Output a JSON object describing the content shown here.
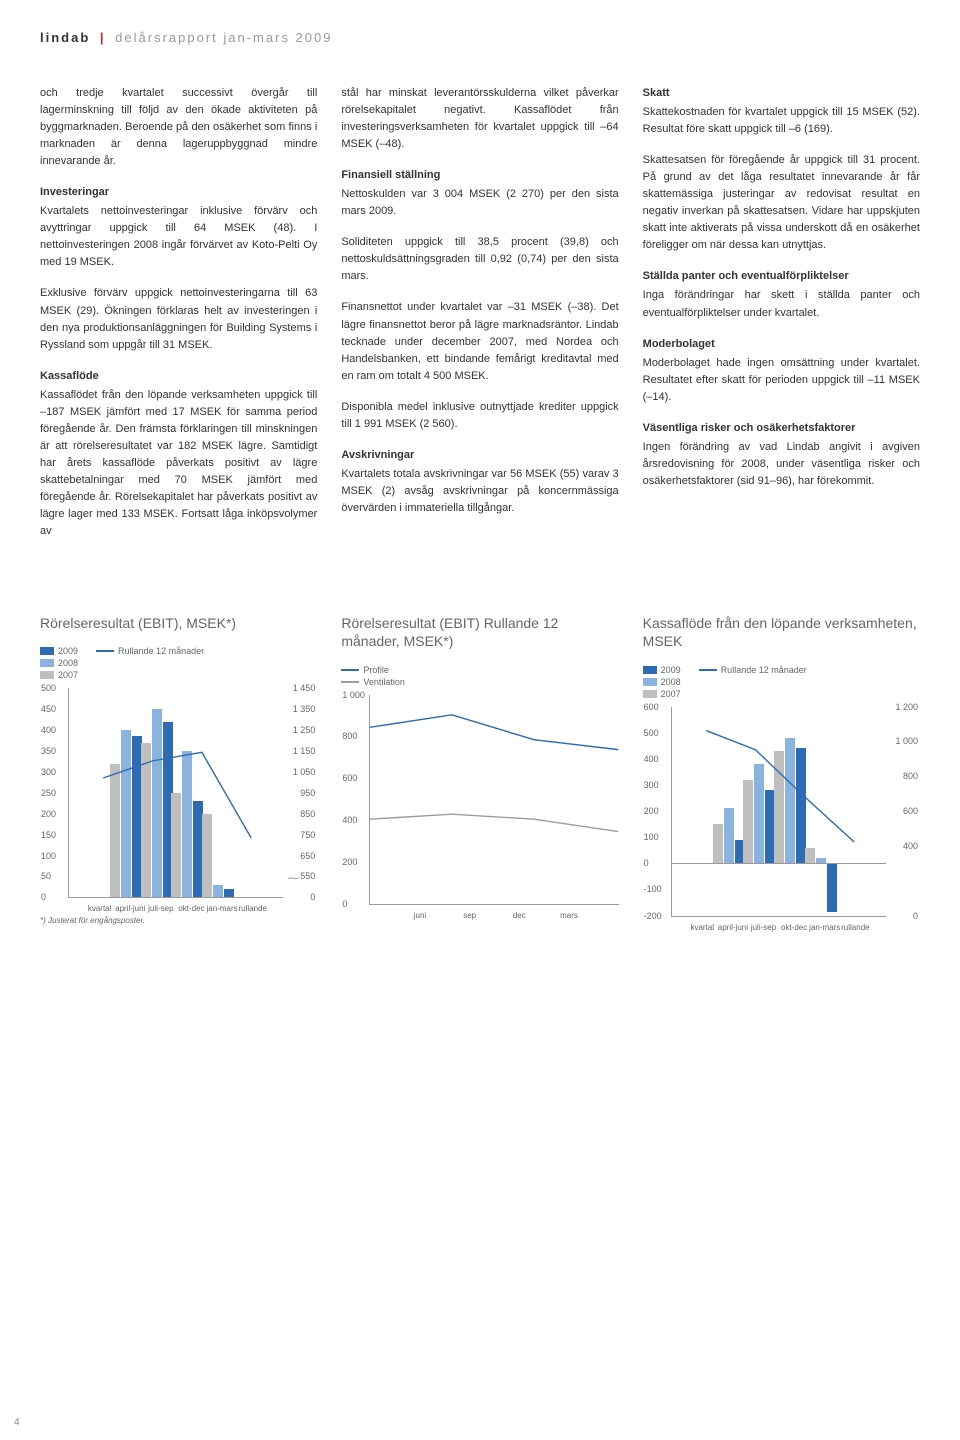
{
  "header": {
    "brand": "lindab",
    "divider": "|",
    "sub": "delårsrapport jan-mars 2009"
  },
  "page_number": "4",
  "col1": {
    "p1": "och tredje kvartalet successivt övergår till lagerminskning till följd av den ökade aktiviteten på byggmarknaden. Beroende på den osäkerhet som finns i marknaden är denna lageruppbyggnad mindre innevarande år.",
    "h1": "Investeringar",
    "p2": "Kvartalets nettoinvesteringar inklusive förvärv och avyttringar uppgick till 64 MSEK (48). I nettoinvesteringen 2008 ingår förvärvet av Koto-Pelti Oy med 19 MSEK.",
    "p3": "Exklusive förvärv uppgick nettoinvesteringarna till 63 MSEK (29). Ökningen förklaras helt av investeringen i den nya produktionsanläggningen för Building Systems i Ryssland som uppgår till 31 MSEK.",
    "h2": "Kassaflöde",
    "p4": "Kassaflödet från den löpande verksamheten uppgick till –187 MSEK jämfört med 17 MSEK för samma period föregående år. Den främsta förklaringen till minskningen är att rörelseresultatet var 182 MSEK lägre. Samtidigt har årets kassaflöde påverkats positivt av lägre skattebetalningar med 70 MSEK jämfört med föregående år. Rörelsekapitalet har påverkats positivt av lägre lager med 133 MSEK. Fortsatt låga inköpsvolymer av"
  },
  "col2": {
    "p1": "stål har minskat leverantörsskulderna vilket påverkar rörelsekapitalet negativt. Kassaflödet från investeringsverksamheten för kvartalet uppgick till –64 MSEK (–48).",
    "h1": "Finansiell ställning",
    "p2": "Nettoskulden var 3 004 MSEK (2 270) per den sista mars 2009.",
    "p3": "Soliditeten uppgick till 38,5 procent (39,8) och nettoskuldsättningsgraden till 0,92 (0,74) per den sista mars.",
    "p4": "Finansnettot under kvartalet var –31 MSEK (–38). Det lägre finansnettot beror på lägre marknadsräntor. Lindab tecknade under december 2007, med Nordea och Handelsbanken, ett bindande femårigt kreditavtal med en ram om totalt 4 500 MSEK.",
    "p5": "Disponibla medel inklusive outnyttjade krediter uppgick till 1 991 MSEK (2 560).",
    "h2": "Avskrivningar",
    "p6": "Kvartalets totala avskrivningar var 56 MSEK (55) varav 3 MSEK (2) avsåg avskrivningar på koncernmässiga övervärden i immateriella tillgångar."
  },
  "col3": {
    "h1": "Skatt",
    "p1": "Skattekostnaden för kvartalet uppgick till 15 MSEK (52). Resultat före skatt uppgick till –6 (169).",
    "p2": "Skattesatsen för föregående år uppgick till 31 procent. På grund av det låga resultatet innevarande år får skattemässiga justeringar av redovisat resultat en negativ inverkan på skattesatsen. Vidare har uppskjuten skatt inte aktiverats på vissa underskott då en osäkerhet föreligger om när dessa kan utnyttjas.",
    "h2": "Ställda panter och eventualförpliktelser",
    "p3": "Inga förändringar har skett i ställda panter och eventualförpliktelser under kvartalet.",
    "h3": "Moderbolaget",
    "p4": "Moderbolaget hade ingen omsättning under kvartalet. Resultatet efter skatt för perioden uppgick till –11 MSEK (–14).",
    "h4": "Väsentliga risker och osäkerhetsfaktorer",
    "p5": "Ingen förändring av vad Lindab angivit i avgiven årsredovisning för 2008, under väsentliga risker och osäkerhetsfaktorer (sid 91–96), har förekommit."
  },
  "chart1": {
    "title": "Rörelseresultat (EBIT), MSEK*)",
    "legend_2009": "2009",
    "legend_2008": "2008",
    "legend_2007": "2007",
    "legend_line": "Rullande 12 månader",
    "colors": {
      "y2009": "#2d6bb5",
      "y2008": "#8ab3e0",
      "y2007": "#bfbfbf",
      "line": "#2d6bb5"
    },
    "xlabels": [
      "kvartal",
      "april-juni",
      "juli-sep",
      "okt-dec",
      "jan-mars",
      "rullande"
    ],
    "y_left": [
      "500",
      "450",
      "400",
      "350",
      "300",
      "250",
      "200",
      "150",
      "100",
      "50",
      "0"
    ],
    "y_right": [
      "1 450",
      "1 350",
      "1 250",
      "1 150",
      "1 050",
      "950",
      "850",
      "750",
      "650",
      "550",
      "0"
    ],
    "bars": {
      "q1": {
        "y2007": 320,
        "y2008": 400,
        "y2009": 385
      },
      "q2": {
        "y2007": 370,
        "y2008": 450,
        "y2009": 420
      },
      "q3": {
        "y2007": 250,
        "y2008": 350,
        "y2009": 230
      },
      "q4": {
        "y2007": 200,
        "y2008": 30,
        "y2009": 20
      }
    },
    "line_pts": [
      [
        0.16,
        0.42
      ],
      [
        0.39,
        0.34
      ],
      [
        0.62,
        0.3
      ],
      [
        0.85,
        0.7
      ]
    ],
    "footnote": "*) Justerat för engångsposter."
  },
  "chart2": {
    "title": "Rörelseresultat (EBIT) Rullande 12 månader, MSEK*)",
    "legend_a": "Profile",
    "legend_b": "Ventilation",
    "colors": {
      "a": "#2d6bb5",
      "b": "#9c9c9c"
    },
    "xlabels": [
      "juni",
      "sep",
      "dec",
      "mars"
    ],
    "y_left": [
      "1 000",
      "800",
      "600",
      "400",
      "200",
      "0"
    ],
    "series_a": [
      [
        0.0,
        0.13
      ],
      [
        0.33,
        0.08
      ],
      [
        0.66,
        0.18
      ],
      [
        1.0,
        0.22
      ]
    ],
    "series_b": [
      [
        0.0,
        0.5
      ],
      [
        0.33,
        0.48
      ],
      [
        0.66,
        0.5
      ],
      [
        1.0,
        0.55
      ]
    ]
  },
  "chart3": {
    "title": "Kassaflöde från den löpande verksamheten, MSEK",
    "legend_2009": "2009",
    "legend_2008": "2008",
    "legend_2007": "2007",
    "legend_line": "Rullande 12 månader",
    "colors": {
      "y2009": "#2d6bb5",
      "y2008": "#8ab3e0",
      "y2007": "#bfbfbf",
      "line": "#2d6bb5"
    },
    "xlabels": [
      "kvartal",
      "april-juni",
      "juli-sep",
      "okt-dec",
      "jan-mars",
      "rullande"
    ],
    "y_left": [
      "600",
      "500",
      "400",
      "300",
      "200",
      "100",
      "0",
      "-100",
      "-200"
    ],
    "y_right": [
      "1 200",
      "1 000",
      "800",
      "600",
      "400",
      "",
      "0"
    ],
    "bars": {
      "q1": {
        "y2007": 150,
        "y2008": 210,
        "y2009": 90
      },
      "q2": {
        "y2007": 320,
        "y2008": 380,
        "y2009": 280
      },
      "q3": {
        "y2007": 430,
        "y2008": 480,
        "y2009": 440
      },
      "q4": {
        "y2007": 60,
        "y2008": 20,
        "y2009": -185
      }
    },
    "line_pts": [
      [
        0.16,
        0.11
      ],
      [
        0.39,
        0.2
      ],
      [
        0.62,
        0.42
      ],
      [
        0.85,
        0.63
      ]
    ]
  }
}
